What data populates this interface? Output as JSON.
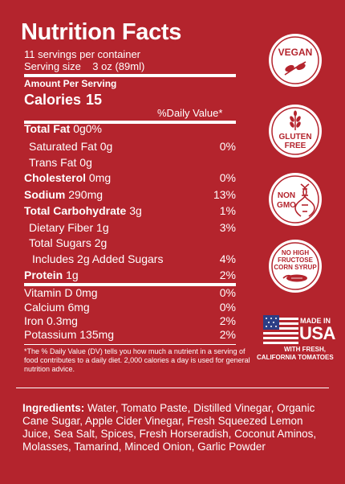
{
  "panel": {
    "title": "Nutrition Facts",
    "servings_per_container": "11 servings per container",
    "serving_size_label": "Serving size",
    "serving_size_value": "3 oz (89ml)",
    "amount_per_serving": "Amount Per Serving",
    "calories_label": "Calories",
    "calories_value": "15",
    "daily_value_header": "%Daily Value*"
  },
  "nutrients": [
    {
      "name": "Total Fat",
      "amount": "0g",
      "dv": "0%",
      "bold": true
    },
    {
      "name": "Saturated Fat",
      "amount": "0g",
      "dv": "0%",
      "bold": false
    },
    {
      "name": "Trans Fat",
      "amount": "0g",
      "dv": "",
      "bold": false
    },
    {
      "name": "Cholesterol",
      "amount": "0mg",
      "dv": "0%",
      "bold": true
    },
    {
      "name": "Sodium",
      "amount": "290mg",
      "dv": "13%",
      "bold": true
    },
    {
      "name": "Total Carbohydrate",
      "amount": "3g",
      "dv": "1%",
      "bold": true
    },
    {
      "name": "Dietary Fiber",
      "amount": "1g",
      "dv": "3%",
      "bold": false
    },
    {
      "name": "Total Sugars",
      "amount": "2g",
      "dv": "",
      "bold": false
    },
    {
      "name": "Includes 2g Added Sugars",
      "amount": "",
      "dv": "4%",
      "bold": false
    },
    {
      "name": "Protein",
      "amount": "1g",
      "dv": "2%",
      "bold": true
    },
    {
      "name": "Vitamin D",
      "amount": "0mg",
      "dv": "0%",
      "bold": false
    },
    {
      "name": "Calcium",
      "amount": "6mg",
      "dv": "0%",
      "bold": false
    },
    {
      "name": "Iron",
      "amount": "0.3mg",
      "dv": "2%",
      "bold": false
    },
    {
      "name": "Potassium",
      "amount": "135mg",
      "dv": "2%",
      "bold": false
    }
  ],
  "footnote": "*The % Daily Value (DV) tells you how much a nutrient in a serving of food contributes to a daily diet. 2,000 calories a day is used for general nutrition advice.",
  "ingredients": {
    "label": "Ingredients:",
    "text": "Water, Tomato Paste, Distilled Vinegar, Organic Cane Sugar, Apple Cider Vinegar, Fresh Squeezed Lemon Juice, Sea Salt, Spices, Fresh Horseradish, Coconut Aminos, Molasses, Tamarind, Minced Onion, Garlic Powder"
  },
  "badges": {
    "vegan": "VEGAN",
    "gluten_free_line1": "GLUTEN",
    "gluten_free_line2": "FREE",
    "non_gmo_line1": "NON",
    "non_gmo_line2": "GMO",
    "hfcs_line1": "NO HIGH",
    "hfcs_line2": "FRUCTOSE",
    "hfcs_line3": "CORN SYRUP",
    "usa_line1": "MADE IN",
    "usa_line2": "USA",
    "usa_line3": "WITH FRESH,",
    "usa_line4": "CALIFORNIA TOMATOES"
  },
  "colors": {
    "background": "#b4242d",
    "text": "#ffffff",
    "badge_text": "#b4242d",
    "flag_blue": "#2c3e86"
  }
}
